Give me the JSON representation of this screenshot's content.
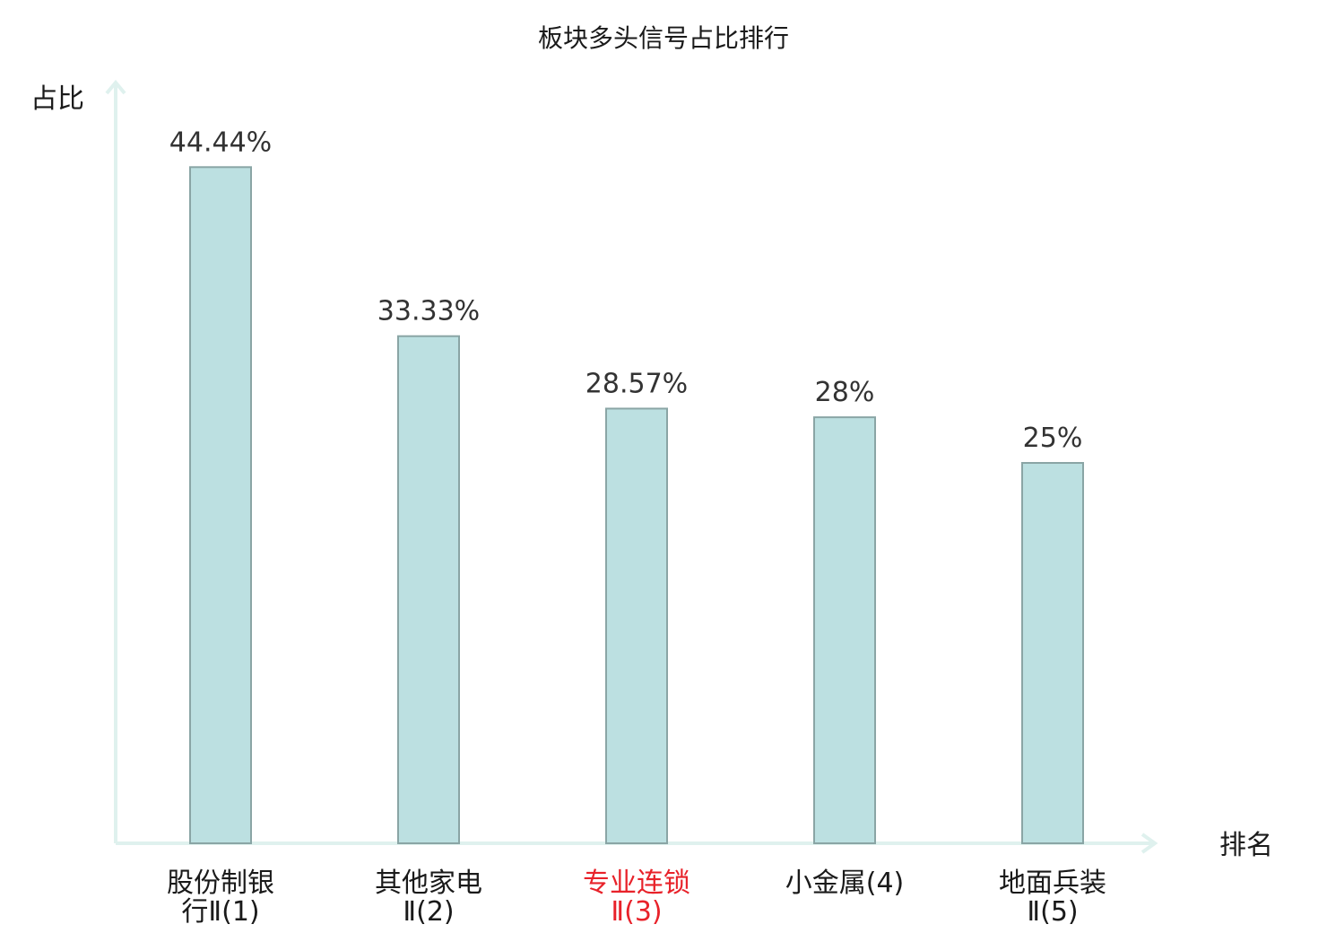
{
  "chart_data": {
    "type": "bar",
    "title": "板块多头信号占比排行",
    "ylabel": "占比",
    "xlabel": "排名",
    "categories": [
      {
        "lines": [
          "股份制银",
          "行Ⅱ(1)"
        ],
        "highlight": false
      },
      {
        "lines": [
          "其他家电",
          "Ⅱ(2)"
        ],
        "highlight": false
      },
      {
        "lines": [
          "专业连锁",
          "Ⅱ(3)"
        ],
        "highlight": true
      },
      {
        "lines": [
          "小金属(4)"
        ],
        "highlight": false
      },
      {
        "lines": [
          "地面兵装",
          "Ⅱ(5)"
        ],
        "highlight": false
      }
    ],
    "values": [
      44.44,
      33.33,
      28.57,
      28,
      25
    ],
    "value_labels": [
      "44.44%",
      "33.33%",
      "28.57%",
      "28%",
      "25%"
    ],
    "ylim": [
      0,
      50
    ],
    "grid": false,
    "colors": {
      "bar_fill": "#bce0e1",
      "bar_stroke": "#8aa5a5",
      "axis": "#dff1ee",
      "highlight_text": "#e8222a",
      "text": "#1a1a1a"
    }
  }
}
